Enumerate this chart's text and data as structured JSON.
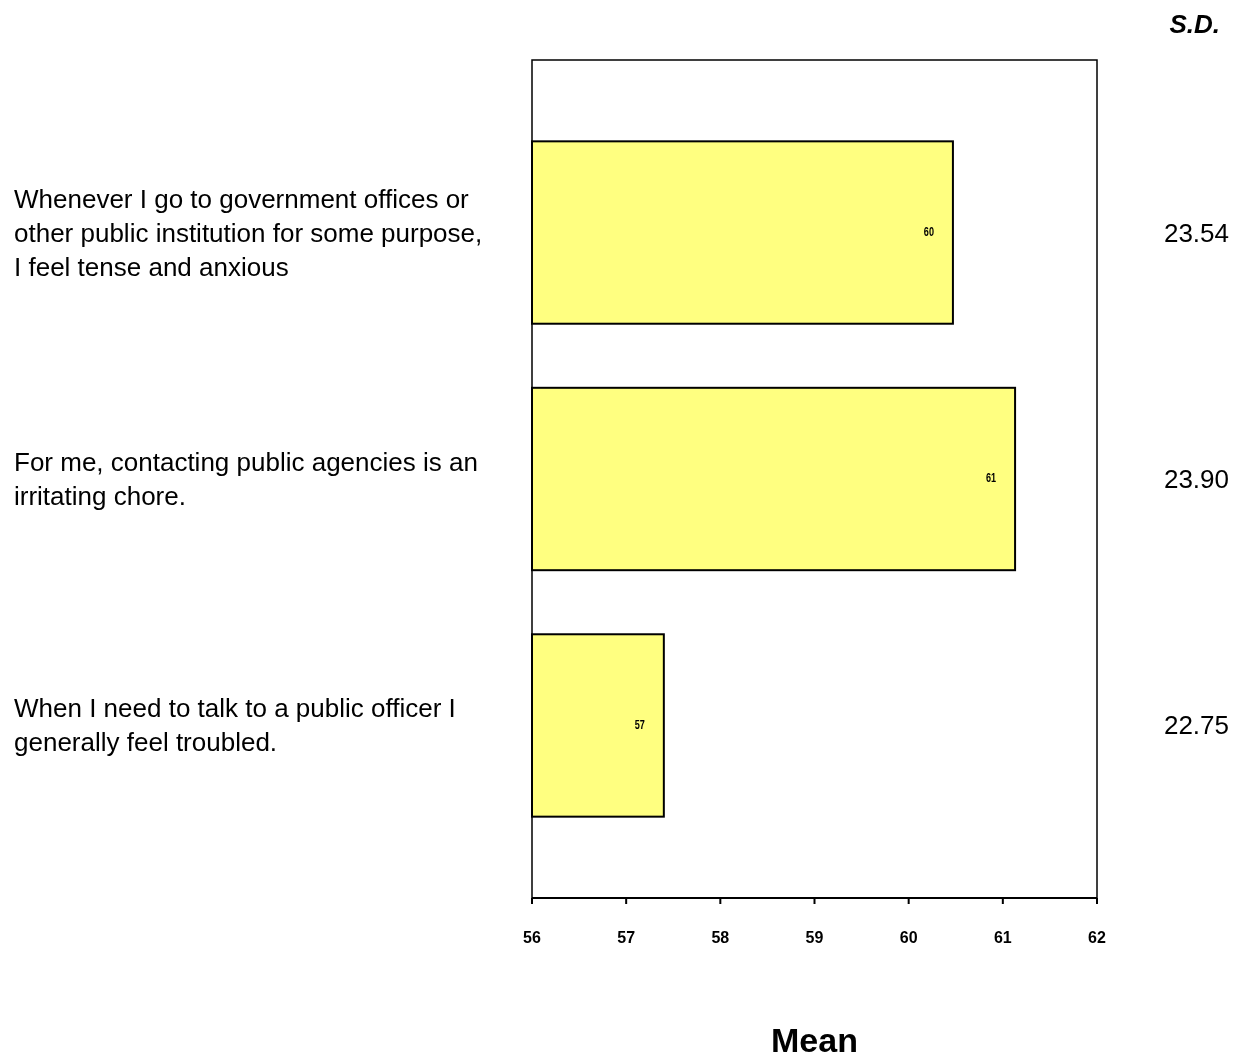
{
  "chart_data": {
    "type": "bar",
    "orientation": "horizontal",
    "xlabel": "Mean",
    "categories": [
      "Whenever I go to government offices or other public institution for some purpose, I feel tense and anxious",
      "For me, contacting public agencies is an irritating chore.",
      "When I need to talk to a public officer I generally feel troubled."
    ],
    "values": [
      60.47,
      61.13,
      57.4
    ],
    "color": "#ffff80",
    "value_labels": [
      "60",
      "61",
      "57"
    ],
    "xlim": [
      56,
      62
    ],
    "xticks": [
      56,
      57,
      58,
      59,
      60,
      61,
      62
    ],
    "grid": false,
    "annotations": [
      "S.D.",
      "23.54",
      "23.90",
      "22.75"
    ]
  }
}
